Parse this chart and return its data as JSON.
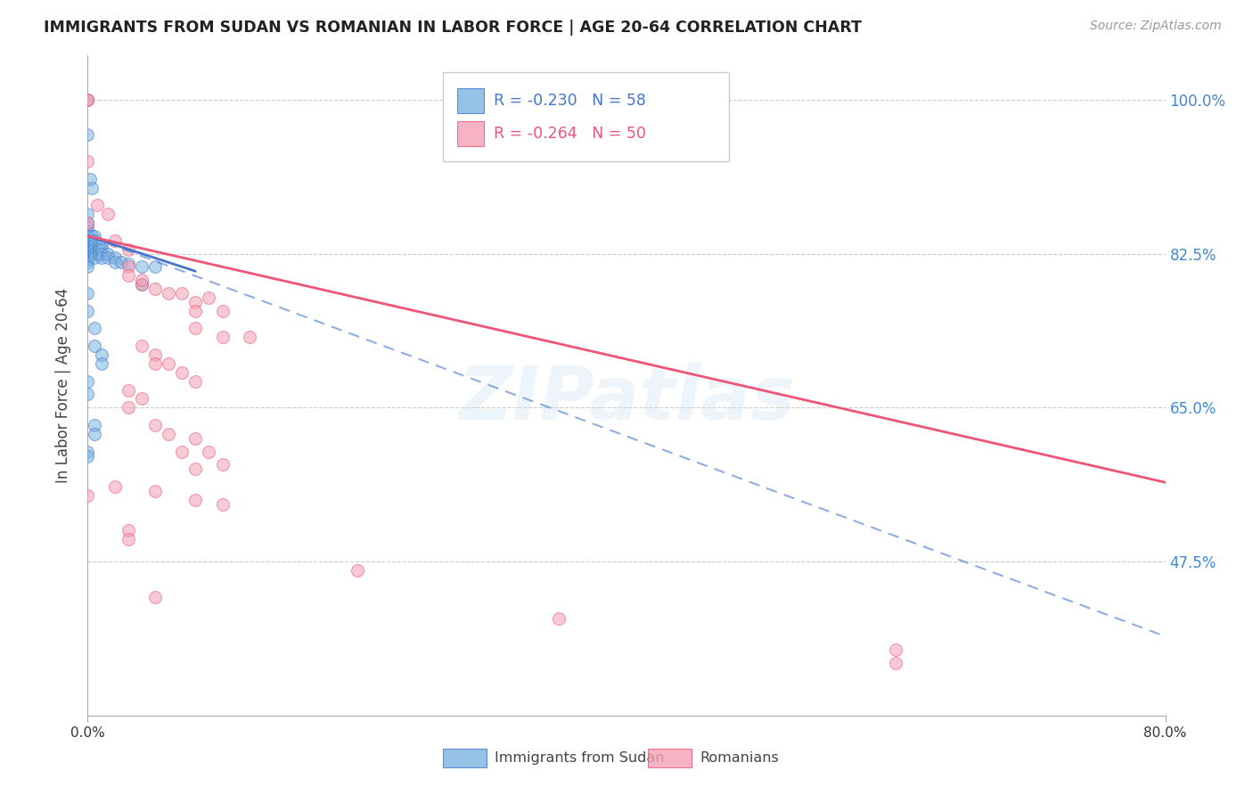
{
  "title": "IMMIGRANTS FROM SUDAN VS ROMANIAN IN LABOR FORCE | AGE 20-64 CORRELATION CHART",
  "source": "Source: ZipAtlas.com",
  "ylabel": "In Labor Force | Age 20-64",
  "xlim": [
    0.0,
    0.8
  ],
  "ylim": [
    0.3,
    1.05
  ],
  "yticks": [
    0.475,
    0.65,
    0.825,
    1.0
  ],
  "ytick_labels": [
    "47.5%",
    "65.0%",
    "82.5%",
    "100.0%"
  ],
  "legend_labels": [
    "Immigrants from Sudan",
    "Romanians"
  ],
  "sudan_color": "#7BB3E0",
  "romanian_color": "#F4A0B5",
  "sudan_R": -0.23,
  "sudan_N": 58,
  "romanian_R": -0.264,
  "romanian_N": 50,
  "sudan_line_color": "#4477CC",
  "romanian_line_color": "#EE5577",
  "sudan_line": [
    0.0,
    0.845,
    0.08,
    0.805
  ],
  "romanian_line": [
    0.0,
    0.845,
    0.8,
    0.565
  ],
  "sudan_dash_line": [
    0.0,
    0.845,
    0.8,
    0.39
  ],
  "watermark": "ZIPatlas",
  "sudan_points": [
    [
      0.0,
      1.0
    ],
    [
      0.0,
      0.96
    ],
    [
      0.002,
      0.91
    ],
    [
      0.003,
      0.9
    ],
    [
      0.0,
      0.87
    ],
    [
      0.0,
      0.86
    ],
    [
      0.0,
      0.855
    ],
    [
      0.0,
      0.85
    ],
    [
      0.0,
      0.845
    ],
    [
      0.0,
      0.84
    ],
    [
      0.0,
      0.838
    ],
    [
      0.0,
      0.835
    ],
    [
      0.0,
      0.83
    ],
    [
      0.0,
      0.828
    ],
    [
      0.0,
      0.825
    ],
    [
      0.0,
      0.822
    ],
    [
      0.0,
      0.82
    ],
    [
      0.0,
      0.818
    ],
    [
      0.0,
      0.815
    ],
    [
      0.0,
      0.81
    ],
    [
      0.003,
      0.845
    ],
    [
      0.003,
      0.84
    ],
    [
      0.003,
      0.835
    ],
    [
      0.003,
      0.83
    ],
    [
      0.005,
      0.845
    ],
    [
      0.005,
      0.84
    ],
    [
      0.005,
      0.835
    ],
    [
      0.005,
      0.83
    ],
    [
      0.005,
      0.825
    ],
    [
      0.005,
      0.82
    ],
    [
      0.008,
      0.835
    ],
    [
      0.008,
      0.83
    ],
    [
      0.008,
      0.825
    ],
    [
      0.01,
      0.835
    ],
    [
      0.01,
      0.83
    ],
    [
      0.01,
      0.825
    ],
    [
      0.01,
      0.82
    ],
    [
      0.015,
      0.825
    ],
    [
      0.015,
      0.82
    ],
    [
      0.02,
      0.82
    ],
    [
      0.02,
      0.815
    ],
    [
      0.025,
      0.815
    ],
    [
      0.03,
      0.813
    ],
    [
      0.04,
      0.81
    ],
    [
      0.05,
      0.81
    ],
    [
      0.0,
      0.78
    ],
    [
      0.0,
      0.76
    ],
    [
      0.005,
      0.74
    ],
    [
      0.005,
      0.72
    ],
    [
      0.01,
      0.71
    ],
    [
      0.01,
      0.7
    ],
    [
      0.0,
      0.68
    ],
    [
      0.0,
      0.665
    ],
    [
      0.005,
      0.63
    ],
    [
      0.005,
      0.62
    ],
    [
      0.0,
      0.6
    ],
    [
      0.0,
      0.595
    ],
    [
      0.04,
      0.79
    ]
  ],
  "romanian_points": [
    [
      0.0,
      1.0
    ],
    [
      0.0,
      1.0
    ],
    [
      0.0,
      0.93
    ],
    [
      0.007,
      0.88
    ],
    [
      0.0,
      0.86
    ],
    [
      0.015,
      0.87
    ],
    [
      0.02,
      0.84
    ],
    [
      0.03,
      0.83
    ],
    [
      0.03,
      0.81
    ],
    [
      0.03,
      0.8
    ],
    [
      0.04,
      0.79
    ],
    [
      0.04,
      0.795
    ],
    [
      0.05,
      0.785
    ],
    [
      0.06,
      0.78
    ],
    [
      0.07,
      0.78
    ],
    [
      0.08,
      0.77
    ],
    [
      0.09,
      0.775
    ],
    [
      0.08,
      0.76
    ],
    [
      0.1,
      0.76
    ],
    [
      0.08,
      0.74
    ],
    [
      0.1,
      0.73
    ],
    [
      0.12,
      0.73
    ],
    [
      0.04,
      0.72
    ],
    [
      0.05,
      0.71
    ],
    [
      0.05,
      0.7
    ],
    [
      0.06,
      0.7
    ],
    [
      0.07,
      0.69
    ],
    [
      0.08,
      0.68
    ],
    [
      0.03,
      0.67
    ],
    [
      0.04,
      0.66
    ],
    [
      0.03,
      0.65
    ],
    [
      0.05,
      0.63
    ],
    [
      0.06,
      0.62
    ],
    [
      0.08,
      0.615
    ],
    [
      0.07,
      0.6
    ],
    [
      0.09,
      0.6
    ],
    [
      0.08,
      0.58
    ],
    [
      0.1,
      0.585
    ],
    [
      0.02,
      0.56
    ],
    [
      0.05,
      0.555
    ],
    [
      0.08,
      0.545
    ],
    [
      0.1,
      0.54
    ],
    [
      0.2,
      0.465
    ],
    [
      0.35,
      0.41
    ],
    [
      0.6,
      0.375
    ],
    [
      0.0,
      0.55
    ],
    [
      0.03,
      0.51
    ],
    [
      0.03,
      0.5
    ],
    [
      0.05,
      0.435
    ],
    [
      0.6,
      0.36
    ]
  ]
}
